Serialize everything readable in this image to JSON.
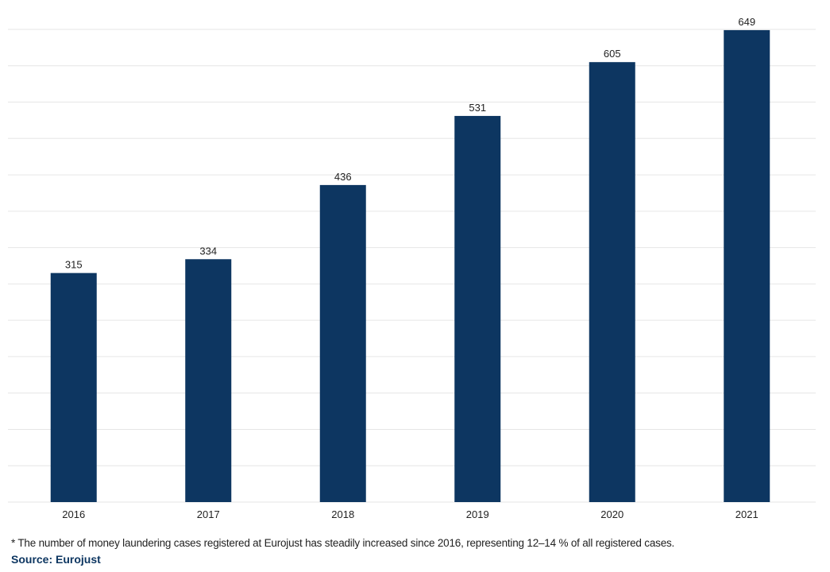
{
  "chart_data": {
    "type": "bar",
    "categories": [
      "2016",
      "2017",
      "2018",
      "2019",
      "2020",
      "2021"
    ],
    "values": [
      315,
      334,
      436,
      531,
      605,
      649
    ],
    "data_labels": [
      "315",
      "334",
      "436",
      "531",
      "605",
      "649"
    ],
    "title": "",
    "xlabel": "",
    "ylabel": "",
    "ylim": [
      0,
      650
    ],
    "grid": true,
    "bar_color": "#0d3661",
    "grid_color": "#e6e6e6"
  },
  "footnote": "* The number of money laundering cases registered at Eurojust has steadily increased since 2016, representing 12–14 % of all registered cases.",
  "source": "Source: Eurojust"
}
